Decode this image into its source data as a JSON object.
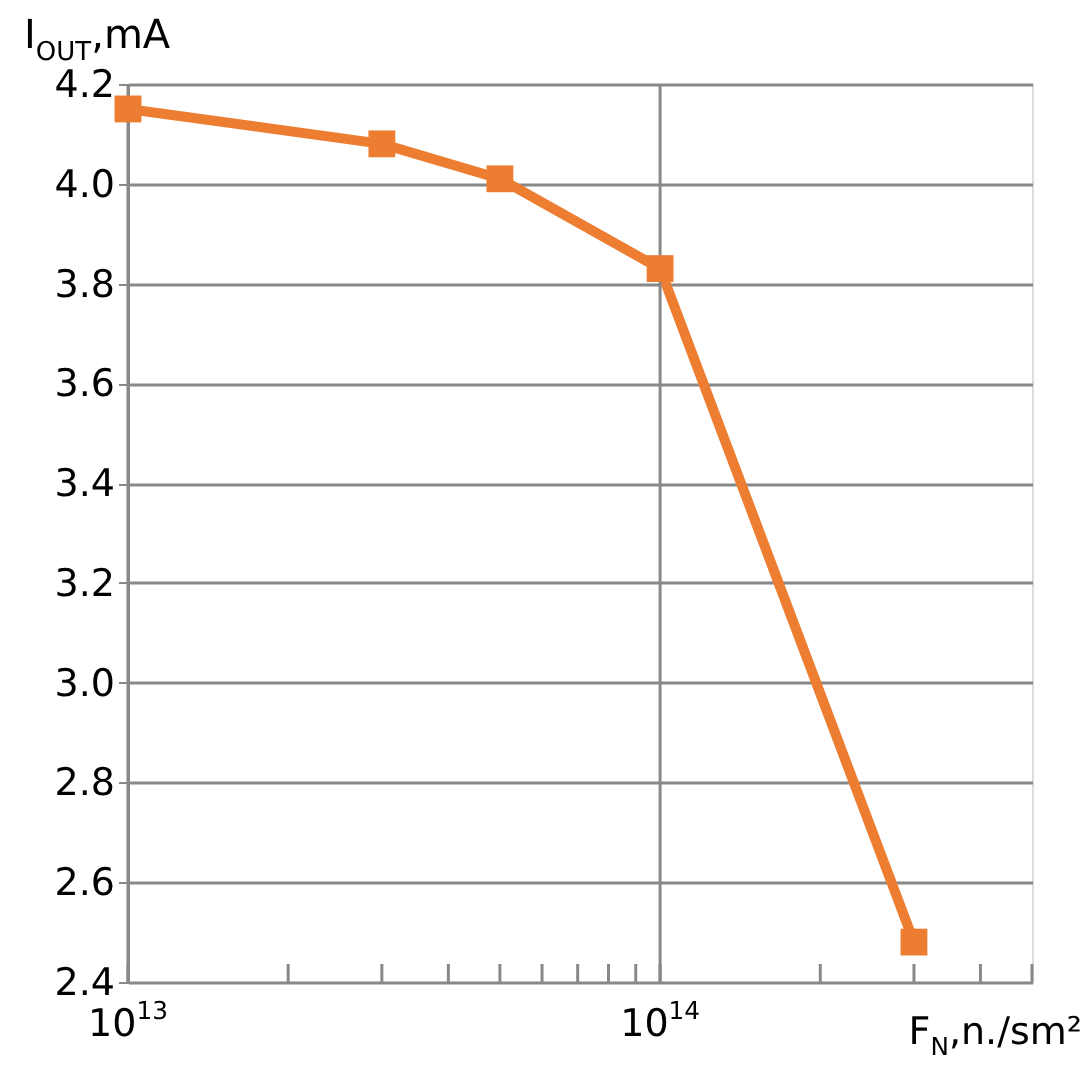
{
  "chart_data": {
    "type": "line",
    "xlabel": "F$_{N}$,n./sm²",
    "ylabel": "I$_{OUT}$,mA",
    "x": [
      10000000000000.0,
      30000000000000.0,
      50000000000000.0,
      100000000000000.0,
      300000000000000.0
    ],
    "series": [
      {
        "color": "#ed7d31",
        "values": [
          4.15,
          4.08,
          4.01,
          3.83,
          2.48
        ]
      }
    ],
    "log": "x",
    "xlim": [
      10000000000000.0,
      500000000000000.0
    ],
    "xticks": [
      {
        "value": 10000000000000.0,
        "label": "10$^{13}$"
      },
      {
        "value": 20000000000000.0,
        "label": null
      },
      {
        "value": 30000000000000.0,
        "label": null
      },
      {
        "value": 40000000000000.0,
        "label": null
      },
      {
        "value": 50000000000000.0,
        "label": null
      },
      {
        "value": 60000000000000.0,
        "label": null
      },
      {
        "value": 70000000000000.0,
        "label": null
      },
      {
        "value": 80000000000000.0,
        "label": null
      },
      {
        "value": 90000000000000.0,
        "label": null
      },
      {
        "value": 100000000000000.0,
        "label": "10$^{14}$"
      },
      {
        "value": 200000000000000.0,
        "label": null
      },
      {
        "value": 300000000000000.0,
        "label": null
      },
      {
        "value": 400000000000000.0,
        "label": null
      },
      {
        "value": 500000000000000.0,
        "label": null
      }
    ],
    "ylim": [
      2.4,
      4.2
    ],
    "yticks": [
      2.4,
      2.6,
      2.8,
      {
        "value": 3,
        "label": "3.0"
      },
      3.2,
      3.4,
      3.6,
      3.8,
      {
        "value": 4,
        "label": "4.0"
      },
      4.2
    ],
    "grid": true,
    "marker": "square",
    "line_style": "solid"
  }
}
